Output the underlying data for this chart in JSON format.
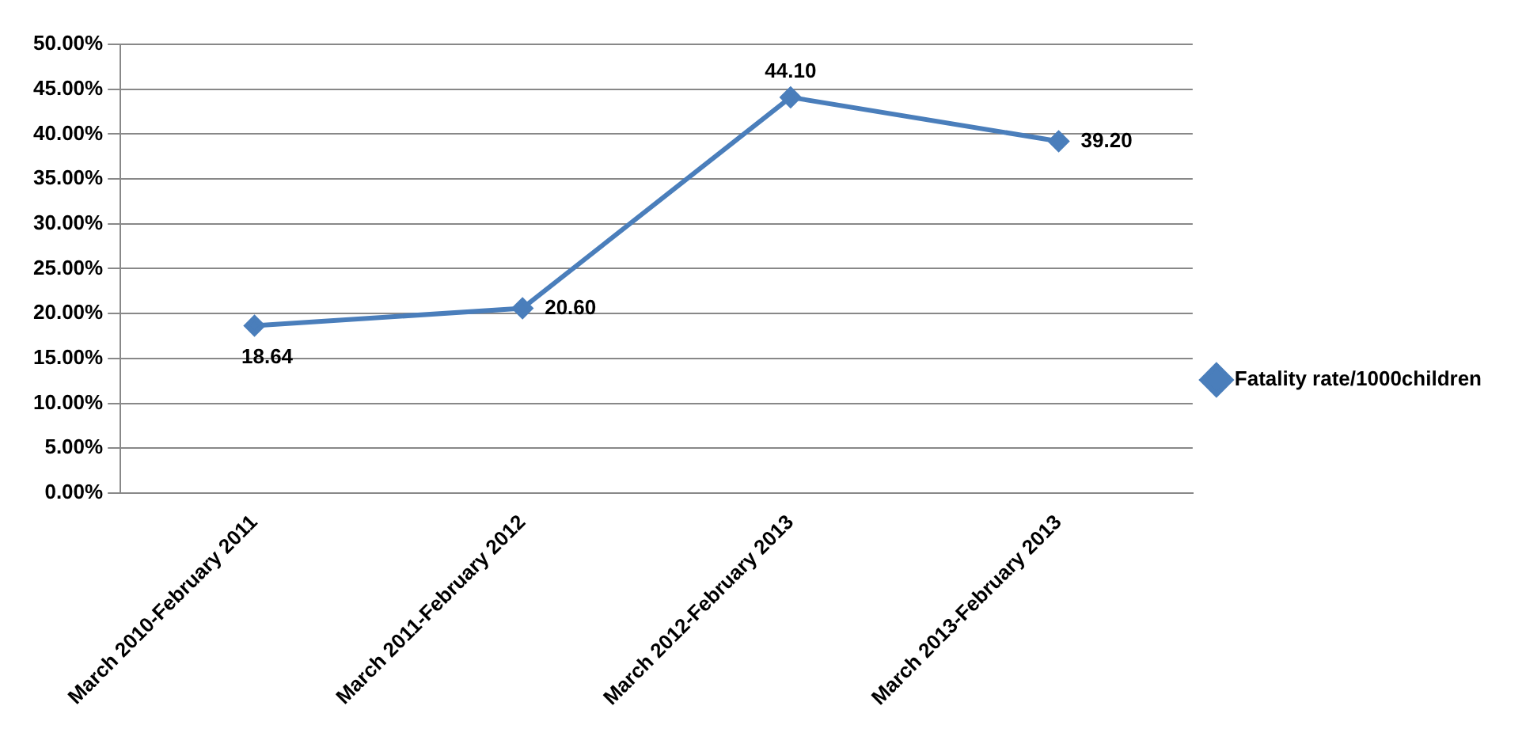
{
  "chart_data": {
    "type": "line",
    "categories": [
      "March 2010-February 2011",
      "March 2011-February 2012",
      "March 2012-February 2013",
      "March 2013-February 2013"
    ],
    "series": [
      {
        "name": "Fatality rate/1000children",
        "color": "#4a7ebb",
        "values": [
          18.64,
          20.6,
          44.1,
          39.2
        ],
        "value_labels": [
          "18.64",
          "20.60",
          "44.10",
          "39.20"
        ]
      }
    ],
    "ylim": [
      0,
      50
    ],
    "yticks": [
      {
        "value": 0,
        "label": "0.00%"
      },
      {
        "value": 5,
        "label": "5.00%"
      },
      {
        "value": 10,
        "label": "10.00%"
      },
      {
        "value": 15,
        "label": "15.00%"
      },
      {
        "value": 20,
        "label": "20.00%"
      },
      {
        "value": 25,
        "label": "25.00%"
      },
      {
        "value": 30,
        "label": "30.00%"
      },
      {
        "value": 35,
        "label": "35.00%"
      },
      {
        "value": 40,
        "label": "40.00%"
      },
      {
        "value": 45,
        "label": "45.00%"
      },
      {
        "value": 50,
        "label": "50.00%"
      }
    ],
    "grid": "y",
    "legend": "right",
    "marker": "diamond",
    "line_style": "solid"
  }
}
